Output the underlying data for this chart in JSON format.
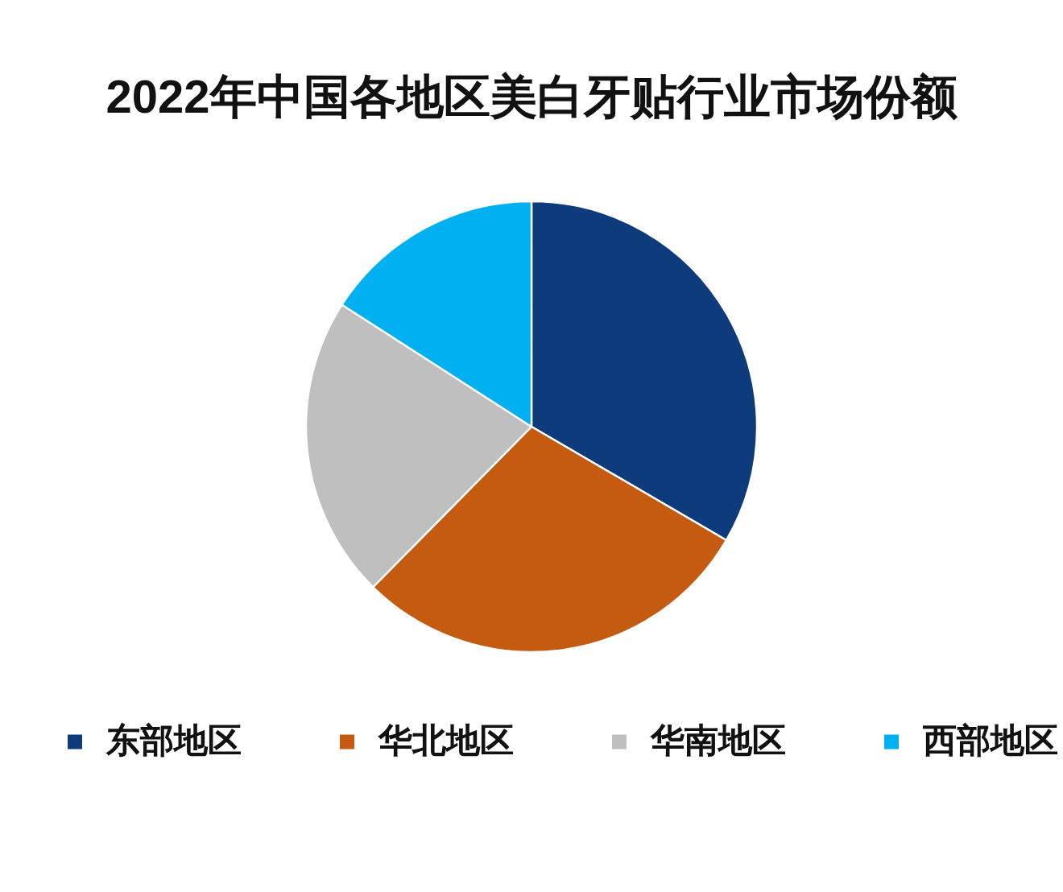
{
  "chart_data": {
    "type": "pie",
    "title": "2022年中国各地区美白牙贴行业市场份额",
    "categories": [
      "东部地区",
      "华北地区",
      "华南地区",
      "西部地区"
    ],
    "values": [
      33.4,
      29.0,
      21.7,
      15.9
    ],
    "colors": [
      "#0d3b7c",
      "#c55a11",
      "#bfbfbf",
      "#00b0f0"
    ],
    "legend": "bottom"
  }
}
